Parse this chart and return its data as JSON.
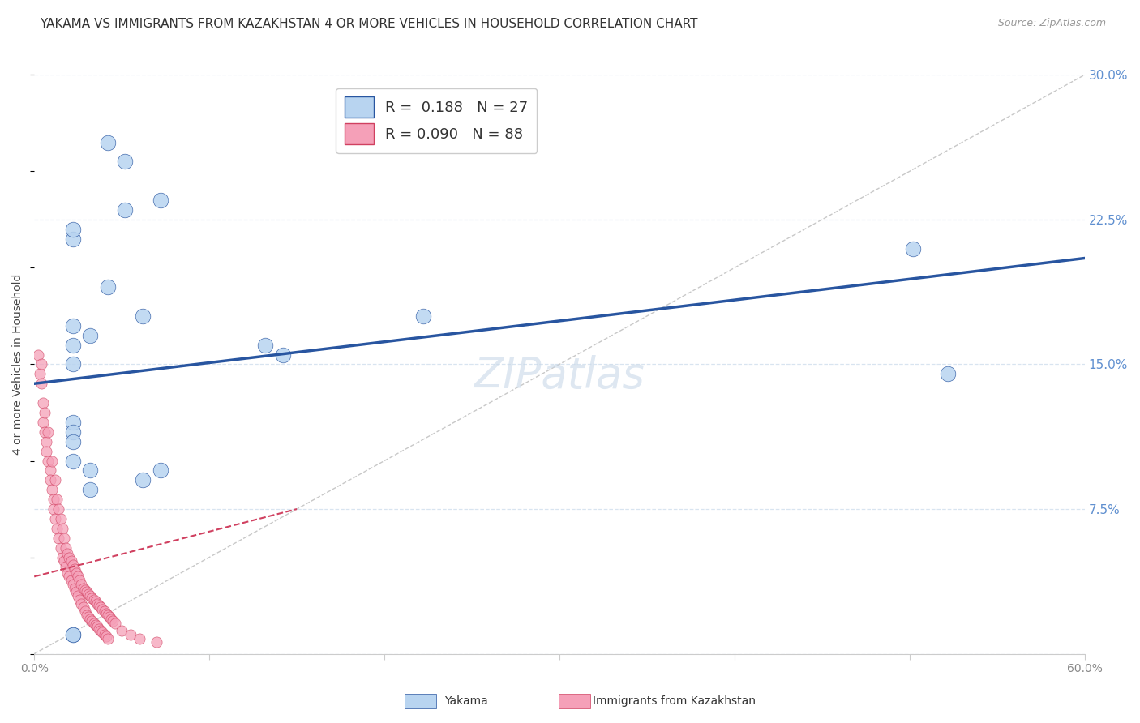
{
  "title": "YAKAMA VS IMMIGRANTS FROM KAZAKHSTAN 4 OR MORE VEHICLES IN HOUSEHOLD CORRELATION CHART",
  "source": "Source: ZipAtlas.com",
  "ylabel": "4 or more Vehicles in Household",
  "xlim": [
    0.0,
    0.6
  ],
  "ylim": [
    0.0,
    0.3
  ],
  "xticks": [
    0.0,
    0.1,
    0.2,
    0.3,
    0.4,
    0.5,
    0.6
  ],
  "xticklabels": [
    "0.0%",
    "",
    "",
    "",
    "",
    "",
    "60.0%"
  ],
  "yticks_right": [
    0.0,
    0.075,
    0.15,
    0.225,
    0.3
  ],
  "yticklabels_right": [
    "",
    "7.5%",
    "15.0%",
    "22.5%",
    "30.0%"
  ],
  "legend_labels": [
    "Yakama",
    "Immigrants from Kazakhstan"
  ],
  "yakama_R": "0.188",
  "yakama_N": "27",
  "kaz_R": "0.090",
  "kaz_N": "88",
  "color_blue": "#b8d4f0",
  "color_blue_line": "#2855a0",
  "color_pink": "#f5a0b8",
  "color_pink_line": "#d04060",
  "color_diag": "#c8c8c8",
  "title_fontsize": 11,
  "source_fontsize": 9,
  "tick_color_right": "#6090d0",
  "grid_color": "#d8e4f0",
  "yakama_x": [
    0.022,
    0.042,
    0.052,
    0.072,
    0.022,
    0.042,
    0.062,
    0.022,
    0.032,
    0.022,
    0.022,
    0.132,
    0.222,
    0.032,
    0.072,
    0.142,
    0.022,
    0.022,
    0.022,
    0.022,
    0.032,
    0.062,
    0.022,
    0.502,
    0.522,
    0.022,
    0.052
  ],
  "yakama_y": [
    0.215,
    0.265,
    0.255,
    0.235,
    0.22,
    0.19,
    0.175,
    0.17,
    0.165,
    0.16,
    0.15,
    0.16,
    0.175,
    0.095,
    0.095,
    0.155,
    0.12,
    0.115,
    0.11,
    0.1,
    0.085,
    0.09,
    0.01,
    0.21,
    0.145,
    0.01,
    0.23
  ],
  "kaz_x": [
    0.002,
    0.003,
    0.004,
    0.004,
    0.005,
    0.005,
    0.006,
    0.006,
    0.007,
    0.007,
    0.008,
    0.008,
    0.009,
    0.009,
    0.01,
    0.01,
    0.011,
    0.011,
    0.012,
    0.012,
    0.013,
    0.013,
    0.014,
    0.014,
    0.015,
    0.015,
    0.016,
    0.016,
    0.017,
    0.017,
    0.018,
    0.018,
    0.019,
    0.019,
    0.02,
    0.02,
    0.021,
    0.021,
    0.022,
    0.022,
    0.023,
    0.023,
    0.024,
    0.024,
    0.025,
    0.025,
    0.026,
    0.026,
    0.027,
    0.027,
    0.028,
    0.028,
    0.029,
    0.029,
    0.03,
    0.03,
    0.031,
    0.031,
    0.032,
    0.032,
    0.033,
    0.033,
    0.034,
    0.034,
    0.035,
    0.035,
    0.036,
    0.036,
    0.037,
    0.037,
    0.038,
    0.038,
    0.039,
    0.039,
    0.04,
    0.04,
    0.041,
    0.041,
    0.042,
    0.042,
    0.043,
    0.044,
    0.045,
    0.046,
    0.05,
    0.055,
    0.06,
    0.07
  ],
  "kaz_y": [
    0.155,
    0.145,
    0.15,
    0.14,
    0.13,
    0.12,
    0.125,
    0.115,
    0.11,
    0.105,
    0.115,
    0.1,
    0.095,
    0.09,
    0.1,
    0.085,
    0.08,
    0.075,
    0.09,
    0.07,
    0.08,
    0.065,
    0.075,
    0.06,
    0.07,
    0.055,
    0.065,
    0.05,
    0.06,
    0.048,
    0.055,
    0.045,
    0.052,
    0.042,
    0.05,
    0.04,
    0.048,
    0.038,
    0.046,
    0.036,
    0.044,
    0.034,
    0.042,
    0.032,
    0.04,
    0.03,
    0.038,
    0.028,
    0.036,
    0.026,
    0.034,
    0.024,
    0.033,
    0.022,
    0.032,
    0.02,
    0.031,
    0.019,
    0.03,
    0.018,
    0.029,
    0.017,
    0.028,
    0.016,
    0.027,
    0.015,
    0.026,
    0.014,
    0.025,
    0.013,
    0.024,
    0.012,
    0.023,
    0.011,
    0.022,
    0.01,
    0.021,
    0.009,
    0.02,
    0.008,
    0.019,
    0.018,
    0.017,
    0.016,
    0.012,
    0.01,
    0.008,
    0.006
  ],
  "kaz_line_x": [
    0.0,
    0.15
  ],
  "kaz_line_y": [
    0.04,
    0.075
  ],
  "yak_line_x": [
    0.0,
    0.6
  ],
  "yak_line_y": [
    0.14,
    0.205
  ]
}
